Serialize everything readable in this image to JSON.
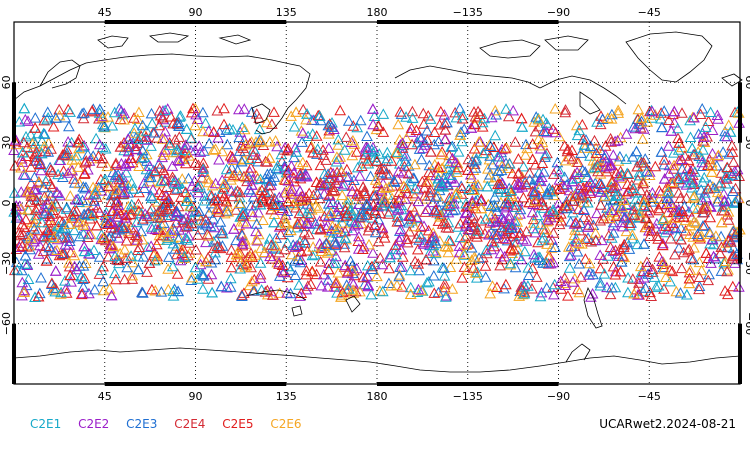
{
  "map": {
    "projection": "cylindrical-equidistant",
    "lon_range": [
      0,
      360
    ],
    "lat_range": [
      -90,
      90
    ],
    "lon_tick_labels": [
      "45",
      "90",
      "135",
      "180",
      "−135",
      "−90",
      "−45"
    ],
    "lat_tick_labels_left": [
      "60",
      "30",
      "0",
      "−30",
      "−60"
    ],
    "lat_tick_labels_right": [
      "60",
      "30",
      "0",
      "−30",
      "−60"
    ],
    "gridlines": "dotted",
    "marker": "open-triangle",
    "observation_band_lat": [
      -47,
      47
    ]
  },
  "legend": [
    {
      "label": "C2E1",
      "color": "#16a9c9"
    },
    {
      "label": "C2E2",
      "color": "#9b1fc9"
    },
    {
      "label": "C2E3",
      "color": "#1f6fd2"
    },
    {
      "label": "C2E4",
      "color": "#d42a34"
    },
    {
      "label": "C2E5",
      "color": "#e11d1d"
    },
    {
      "label": "C2E6",
      "color": "#f5a623"
    }
  ],
  "product_label": "UCARwet2.2024-08-21"
}
